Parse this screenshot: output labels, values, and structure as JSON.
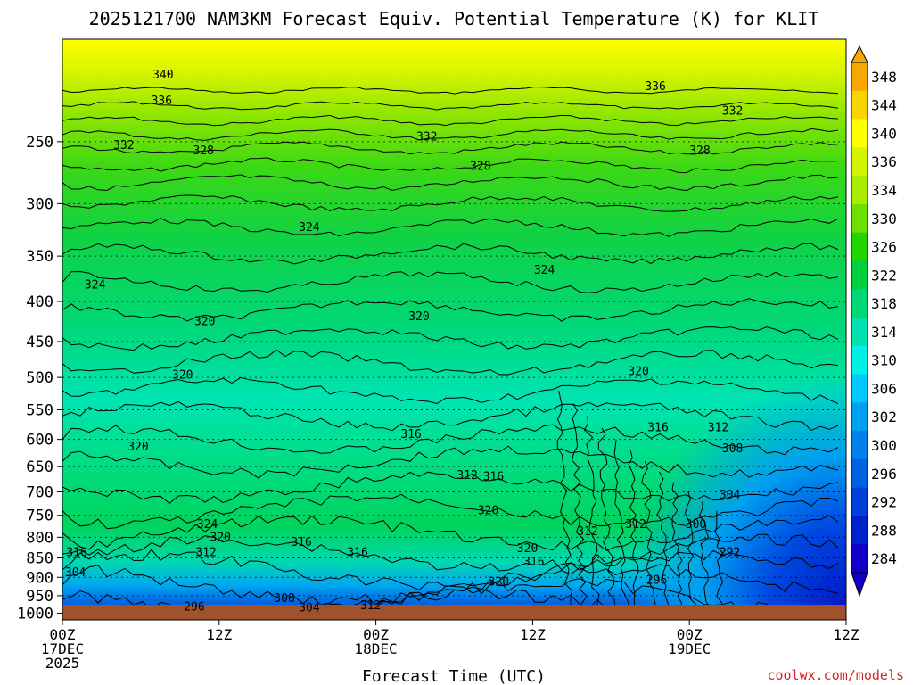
{
  "chart_data": {
    "type": "heatmap",
    "title": "2025121700 NAM3KM Forecast Equiv. Potential Temperature (K) for KLIT",
    "xlabel": "Forecast Time (UTC)",
    "ylabel": "",
    "x_ticks": [
      {
        "line1": "00Z",
        "line2": "17DEC",
        "line3": "2025",
        "hour": 0
      },
      {
        "line1": "12Z",
        "line2": "",
        "line3": "",
        "hour": 12
      },
      {
        "line1": "00Z",
        "line2": "18DEC",
        "line3": "",
        "hour": 24
      },
      {
        "line1": "12Z",
        "line2": "",
        "line3": "",
        "hour": 36
      },
      {
        "line1": "00Z",
        "line2": "19DEC",
        "line3": "",
        "hour": 48
      },
      {
        "line1": "12Z",
        "line2": "",
        "line3": "",
        "hour": 60
      }
    ],
    "xlim_hours": [
      0,
      60
    ],
    "y_ticks": [
      "250",
      "300",
      "350",
      "400",
      "450",
      "500",
      "550",
      "600",
      "650",
      "700",
      "750",
      "800",
      "850",
      "900",
      "950",
      "1000"
    ],
    "ylim_hpa": [
      1020,
      185
    ],
    "y_scale": "log",
    "grid": true,
    "colorbar": {
      "labels": [
        "348",
        "344",
        "340",
        "336",
        "334",
        "330",
        "326",
        "322",
        "318",
        "314",
        "310",
        "306",
        "302",
        "300",
        "296",
        "292",
        "288",
        "284"
      ],
      "colors": [
        "#f4a800",
        "#f8d400",
        "#ffff00",
        "#d4f400",
        "#a8ec00",
        "#6ee000",
        "#22d400",
        "#00d040",
        "#00d878",
        "#00e0b0",
        "#00f0e8",
        "#00c8f8",
        "#00a0f0",
        "#0080e8",
        "#0060e0",
        "#0040d8",
        "#0020cc",
        "#1000c8"
      ],
      "extend": "both"
    },
    "contour_labels": [
      {
        "text": "340",
        "t": 7.7,
        "p": 205
      },
      {
        "text": "336",
        "t": 7.6,
        "p": 221
      },
      {
        "text": "336",
        "t": 45.4,
        "p": 212
      },
      {
        "text": "332",
        "t": 4.7,
        "p": 252
      },
      {
        "text": "328",
        "t": 10.8,
        "p": 256
      },
      {
        "text": "332",
        "t": 27.9,
        "p": 246
      },
      {
        "text": "328",
        "t": 32.0,
        "p": 268
      },
      {
        "text": "332",
        "t": 51.3,
        "p": 228
      },
      {
        "text": "328",
        "t": 48.8,
        "p": 256
      },
      {
        "text": "324",
        "t": 18.9,
        "p": 321
      },
      {
        "text": "324",
        "t": 36.9,
        "p": 364
      },
      {
        "text": "324",
        "t": 2.5,
        "p": 380
      },
      {
        "text": "320",
        "t": 10.9,
        "p": 423
      },
      {
        "text": "320",
        "t": 27.3,
        "p": 417
      },
      {
        "text": "320",
        "t": 9.2,
        "p": 495
      },
      {
        "text": "320",
        "t": 44.1,
        "p": 490
      },
      {
        "text": "316",
        "t": 26.7,
        "p": 590
      },
      {
        "text": "316",
        "t": 45.6,
        "p": 578
      },
      {
        "text": "312",
        "t": 50.2,
        "p": 578
      },
      {
        "text": "320",
        "t": 5.8,
        "p": 612
      },
      {
        "text": "308",
        "t": 51.3,
        "p": 615
      },
      {
        "text": "312",
        "t": 31.0,
        "p": 665
      },
      {
        "text": "316",
        "t": 33.0,
        "p": 668
      },
      {
        "text": "304",
        "t": 51.1,
        "p": 705
      },
      {
        "text": "320",
        "t": 32.6,
        "p": 738
      },
      {
        "text": "324",
        "t": 11.1,
        "p": 768
      },
      {
        "text": "312",
        "t": 40.2,
        "p": 785
      },
      {
        "text": "312",
        "t": 43.9,
        "p": 768
      },
      {
        "text": "300",
        "t": 48.5,
        "p": 768
      },
      {
        "text": "320",
        "t": 12.1,
        "p": 798
      },
      {
        "text": "316",
        "t": 18.3,
        "p": 810
      },
      {
        "text": "312",
        "t": 11.0,
        "p": 835
      },
      {
        "text": "316",
        "t": 1.1,
        "p": 835
      },
      {
        "text": "316",
        "t": 22.6,
        "p": 835
      },
      {
        "text": "320",
        "t": 35.6,
        "p": 825
      },
      {
        "text": "292",
        "t": 51.1,
        "p": 835
      },
      {
        "text": "316",
        "t": 36.1,
        "p": 858
      },
      {
        "text": "304",
        "t": 1.0,
        "p": 885
      },
      {
        "text": "296",
        "t": 45.5,
        "p": 905
      },
      {
        "text": "320",
        "t": 33.4,
        "p": 910
      },
      {
        "text": "308",
        "t": 17.0,
        "p": 955
      },
      {
        "text": "296",
        "t": 10.1,
        "p": 980
      },
      {
        "text": "304",
        "t": 18.9,
        "p": 982
      },
      {
        "text": "312",
        "t": 23.6,
        "p": 975
      }
    ]
  },
  "footer": {
    "credit": "coolwx.com/models",
    "credit_color": "#e02020"
  },
  "colors": {
    "ground": "#a0522d"
  }
}
